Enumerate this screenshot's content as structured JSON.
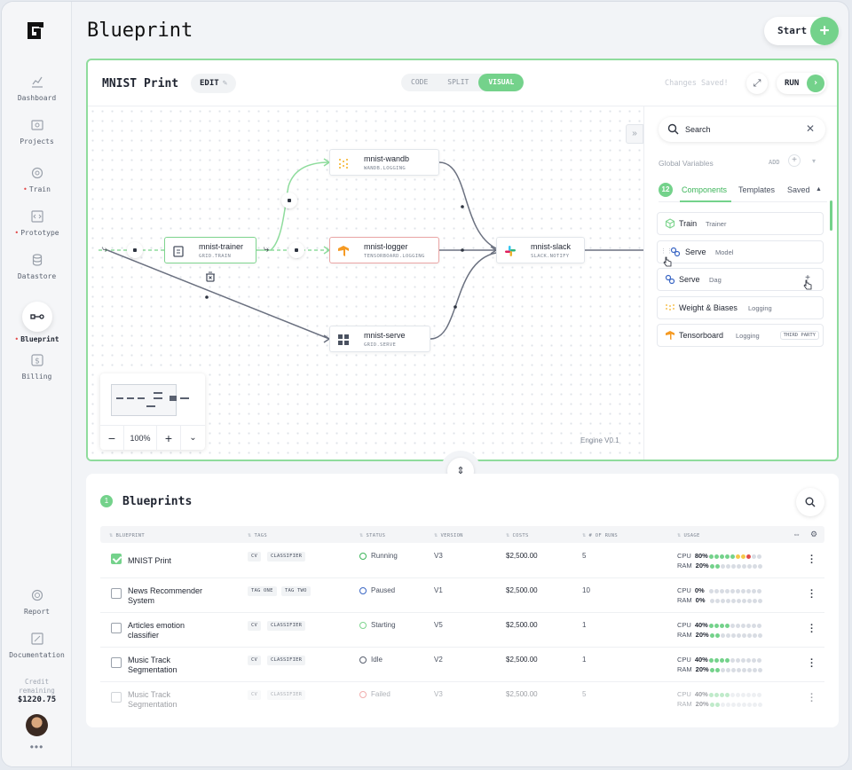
{
  "page": {
    "title": "Blueprint",
    "start_label": "Start"
  },
  "sidebar": {
    "items": [
      {
        "label": "Dashboard",
        "icon": "chart-line-icon",
        "alert": false,
        "active": false
      },
      {
        "label": "Projects",
        "icon": "folder-icon",
        "alert": false,
        "active": false
      },
      {
        "label": "Train",
        "icon": "train-icon",
        "alert": true,
        "active": false
      },
      {
        "label": "Prototype",
        "icon": "code-icon",
        "alert": true,
        "active": false
      },
      {
        "label": "Datastore",
        "icon": "database-icon",
        "alert": false,
        "active": false
      },
      {
        "label": "Blueprint",
        "icon": "blueprint-icon",
        "alert": true,
        "active": true
      },
      {
        "label": "Billing",
        "icon": "billing-icon",
        "alert": false,
        "active": false
      }
    ],
    "bottom_items": [
      {
        "label": "Report",
        "icon": "report-icon"
      },
      {
        "label": "Documentation",
        "icon": "documentation-icon"
      }
    ],
    "credit_label_line1": "Credit",
    "credit_label_line2": "remaining",
    "credit_value": "$1220.75",
    "more": "•••"
  },
  "editor": {
    "name": "MNIST Print",
    "edit_label": "EDIT",
    "views": [
      "CODE",
      "SPLIT",
      "VISUAL"
    ],
    "active_view": "VISUAL",
    "status": "Changes Saved!",
    "run_label": "RUN",
    "zoom": "100%",
    "engine": "Engine V0.1",
    "nodes": [
      {
        "name": "mnist-wandb",
        "sub": "WANDB.LOGGING",
        "icon": "wandb-icon"
      },
      {
        "name": "mnist-trainer",
        "sub": "GRID.TRAIN",
        "icon": "clipboard-icon"
      },
      {
        "name": "mnist-logger",
        "sub": "TENSORBOARD.LOGGING",
        "icon": "tensorboard-icon"
      },
      {
        "name": "mnist-slack",
        "sub": "SLACK.NOTIFY",
        "icon": "slack-icon"
      },
      {
        "name": "mnist-serve",
        "sub": "GRID.SERVE",
        "icon": "grid-icon"
      }
    ]
  },
  "panel": {
    "search_value": "Search",
    "global_vars": "Global Variables",
    "add_label": "ADD",
    "count": "12",
    "tabs": [
      "Components",
      "Templates",
      "Saved"
    ],
    "components": [
      {
        "name": "Train",
        "tag": "Trainer",
        "badge": "",
        "icon": "cube-icon"
      },
      {
        "name": "Serve",
        "tag": "Model",
        "badge": "",
        "icon": "serve-icon"
      },
      {
        "name": "Serve",
        "tag": "Dag",
        "badge": "",
        "icon": "serve-icon"
      },
      {
        "name": "Weight & Biases",
        "tag": "Logging",
        "badge": "",
        "icon": "wandb-icon"
      },
      {
        "name": "Tensorboard",
        "tag": "Logging",
        "badge": "THIRD PARTY",
        "icon": "tensorboard-icon"
      }
    ]
  },
  "table": {
    "count": "1",
    "title": "Blueprints",
    "headers": [
      "BLUEPRINT",
      "TAGS",
      "STATUS",
      "VERSION",
      "COSTS",
      "# OF RUNS",
      "USAGE"
    ],
    "rows": [
      {
        "name": "MNIST Print",
        "tags": [
          "CV",
          "CLASSIFIER"
        ],
        "status": "Running",
        "status_color": "#3db55a",
        "version": "V3",
        "cost": "$2,500.00",
        "runs": "5",
        "cpu": "80%",
        "ram": "20%",
        "cpu_level": 0.8,
        "ram_level": 0.2,
        "checked": true,
        "faded": false
      },
      {
        "name": "News Recommender System",
        "tags": [
          "TAG ONE",
          "TAG TWO"
        ],
        "status": "Paused",
        "status_color": "#3a66c4",
        "version": "V1",
        "cost": "$2,500.00",
        "runs": "10",
        "cpu": "0%",
        "ram": "0%",
        "cpu_level": 0,
        "ram_level": 0,
        "checked": false,
        "faded": false
      },
      {
        "name": "Articles emotion classifier",
        "tags": [
          "CV",
          "CLASSIFIER"
        ],
        "status": "Starting",
        "status_color": "#7fd58f",
        "version": "V5",
        "cost": "$2,500.00",
        "runs": "1",
        "cpu": "40%",
        "ram": "20%",
        "cpu_level": 0.4,
        "ram_level": 0.2,
        "checked": false,
        "faded": false
      },
      {
        "name": "Music Track Segmentation",
        "tags": [
          "CV",
          "CLASSIFIER"
        ],
        "status": "Idle",
        "status_color": "#5a6170",
        "version": "V2",
        "cost": "$2,500.00",
        "runs": "1",
        "cpu": "40%",
        "ram": "20%",
        "cpu_level": 0.4,
        "ram_level": 0.2,
        "checked": false,
        "faded": false
      },
      {
        "name": "Music Track Segmentation",
        "tags": [
          "CV",
          "CLASSIFIER"
        ],
        "status": "Failed",
        "status_color": "#e24b4b",
        "version": "V3",
        "cost": "$2,500.00",
        "runs": "5",
        "cpu": "40%",
        "ram": "20%",
        "cpu_level": 0.4,
        "ram_level": 0.2,
        "checked": false,
        "faded": true
      }
    ]
  }
}
